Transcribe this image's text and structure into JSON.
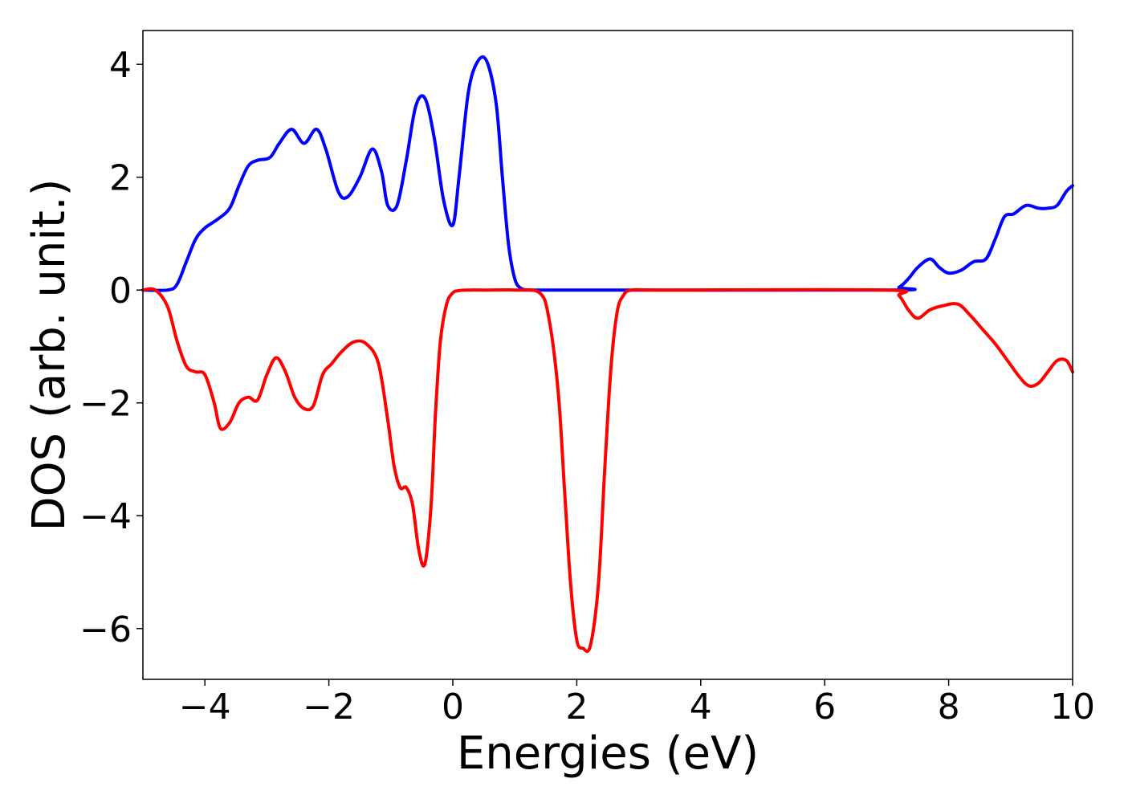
{
  "chart_data": {
    "type": "line",
    "title": "",
    "xlabel": "Energies (eV)",
    "ylabel": "DOS (arb. unit.)",
    "xlim": [
      -5,
      10
    ],
    "ylim": [
      -6.9,
      4.6
    ],
    "grid": false,
    "legend": "none",
    "x_ticks": [
      {
        "value": -4,
        "label": "−4"
      },
      {
        "value": -2,
        "label": "−2"
      },
      {
        "value": 0,
        "label": "0"
      },
      {
        "value": 2,
        "label": "2"
      },
      {
        "value": 4,
        "label": "4"
      },
      {
        "value": 6,
        "label": "6"
      },
      {
        "value": 8,
        "label": "8"
      },
      {
        "value": 10,
        "label": "10"
      }
    ],
    "y_ticks": [
      {
        "value": 4,
        "label": "4"
      },
      {
        "value": 2,
        "label": "2"
      },
      {
        "value": 0,
        "label": "0"
      },
      {
        "value": -2,
        "label": "−2"
      },
      {
        "value": -4,
        "label": "−4"
      },
      {
        "value": -6,
        "label": "−6"
      }
    ],
    "series": [
      {
        "color": "#0000ff",
        "x": [
          -5.0,
          -4.6,
          -4.45,
          -4.3,
          -4.15,
          -4.0,
          -3.8,
          -3.6,
          -3.45,
          -3.3,
          -3.15,
          -2.95,
          -2.8,
          -2.6,
          -2.4,
          -2.2,
          -2.05,
          -1.85,
          -1.7,
          -1.5,
          -1.3,
          -1.15,
          -1.05,
          -0.9,
          -0.75,
          -0.6,
          -0.45,
          -0.3,
          -0.15,
          0.0,
          0.1,
          0.25,
          0.4,
          0.55,
          0.7,
          0.8,
          0.9,
          1.0,
          1.1,
          1.25,
          1.4,
          1.6,
          7.0,
          7.2,
          7.35,
          7.5,
          7.7,
          7.85,
          8.0,
          8.2,
          8.4,
          8.6,
          8.75,
          8.9,
          9.05,
          9.25,
          9.45,
          9.6,
          9.75,
          9.9,
          10.0
        ],
        "y": [
          0.0,
          0.0,
          0.1,
          0.5,
          0.9,
          1.1,
          1.25,
          1.45,
          1.85,
          2.2,
          2.3,
          2.35,
          2.6,
          2.85,
          2.6,
          2.85,
          2.5,
          1.75,
          1.65,
          2.0,
          2.5,
          2.1,
          1.5,
          1.5,
          2.3,
          3.25,
          3.4,
          2.7,
          1.6,
          1.15,
          2.0,
          3.5,
          4.05,
          4.05,
          3.3,
          2.0,
          0.8,
          0.2,
          0.03,
          0.0,
          0.0,
          0.0,
          0.0,
          0.05,
          0.2,
          0.4,
          0.55,
          0.4,
          0.3,
          0.35,
          0.5,
          0.55,
          0.9,
          1.3,
          1.35,
          1.5,
          1.45,
          1.45,
          1.5,
          1.75,
          1.85
        ]
      },
      {
        "color": "#ff0000",
        "x": [
          -5.0,
          -4.8,
          -4.6,
          -4.45,
          -4.3,
          -4.15,
          -4.0,
          -3.85,
          -3.75,
          -3.6,
          -3.45,
          -3.3,
          -3.15,
          -3.0,
          -2.85,
          -2.7,
          -2.55,
          -2.4,
          -2.25,
          -2.1,
          -1.95,
          -1.8,
          -1.6,
          -1.4,
          -1.2,
          -1.05,
          -0.95,
          -0.85,
          -0.75,
          -0.65,
          -0.55,
          -0.45,
          -0.35,
          -0.28,
          -0.2,
          -0.1,
          0.0,
          0.1,
          0.25,
          0.5,
          1.0,
          1.4,
          1.55,
          1.7,
          1.8,
          1.9,
          2.0,
          2.1,
          2.22,
          2.35,
          2.45,
          2.55,
          2.65,
          2.75,
          2.9,
          3.5,
          7.0,
          7.2,
          7.35,
          7.5,
          7.7,
          7.9,
          8.15,
          8.35,
          8.55,
          8.75,
          8.95,
          9.15,
          9.3,
          9.45,
          9.6,
          9.75,
          9.9,
          10.0
        ],
        "y": [
          0.0,
          0.0,
          -0.3,
          -0.9,
          -1.35,
          -1.45,
          -1.5,
          -2.0,
          -2.45,
          -2.35,
          -2.0,
          -1.9,
          -1.95,
          -1.5,
          -1.2,
          -1.45,
          -1.9,
          -2.1,
          -2.05,
          -1.5,
          -1.3,
          -1.1,
          -0.92,
          -0.95,
          -1.3,
          -2.3,
          -3.1,
          -3.5,
          -3.5,
          -3.8,
          -4.6,
          -4.85,
          -3.8,
          -2.2,
          -0.9,
          -0.25,
          -0.05,
          -0.01,
          0.0,
          0.0,
          0.0,
          -0.05,
          -0.5,
          -1.8,
          -3.5,
          -5.2,
          -6.2,
          -6.35,
          -6.3,
          -5.2,
          -3.2,
          -1.4,
          -0.4,
          -0.1,
          0.0,
          0.0,
          0.0,
          -0.1,
          -0.35,
          -0.5,
          -0.35,
          -0.28,
          -0.25,
          -0.45,
          -0.7,
          -0.95,
          -1.25,
          -1.55,
          -1.7,
          -1.65,
          -1.45,
          -1.25,
          -1.25,
          -1.45
        ]
      }
    ]
  }
}
